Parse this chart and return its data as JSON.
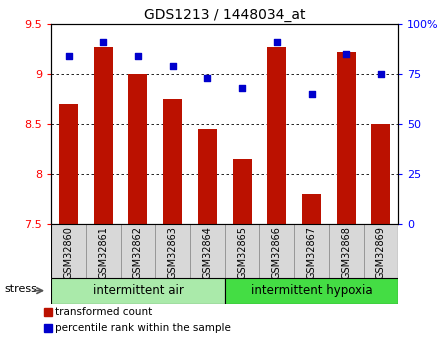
{
  "title": "GDS1213 / 1448034_at",
  "samples": [
    "GSM32860",
    "GSM32861",
    "GSM32862",
    "GSM32863",
    "GSM32864",
    "GSM32865",
    "GSM32866",
    "GSM32867",
    "GSM32868",
    "GSM32869"
  ],
  "transformed_counts": [
    8.7,
    9.27,
    9.0,
    8.75,
    8.45,
    8.15,
    9.27,
    7.8,
    9.22,
    8.5
  ],
  "percentile_ranks": [
    84,
    91,
    84,
    79,
    73,
    68,
    91,
    65,
    85,
    75
  ],
  "ylim_left": [
    7.5,
    9.5
  ],
  "ylim_right": [
    0,
    100
  ],
  "yticks_left": [
    7.5,
    8.0,
    8.5,
    9.0,
    9.5
  ],
  "ytick_labels_left": [
    "7.5",
    "8",
    "8.5",
    "9",
    "9.5"
  ],
  "yticks_right": [
    0,
    25,
    50,
    75,
    100
  ],
  "ytick_labels_right": [
    "0",
    "25",
    "50",
    "75",
    "100%"
  ],
  "groups": [
    {
      "label": "intermittent air",
      "start": 0,
      "end": 4,
      "color": "#AAEAAA"
    },
    {
      "label": "intermittent hypoxia",
      "start": 5,
      "end": 9,
      "color": "#44DD44"
    }
  ],
  "stress_label": "stress",
  "bar_color": "#BB1100",
  "dot_color": "#0000CC",
  "bar_width": 0.55,
  "bg_color": "#D8D8D8",
  "legend_items": [
    {
      "color": "#BB1100",
      "label": "transformed count"
    },
    {
      "color": "#0000CC",
      "label": "percentile rank within the sample"
    }
  ]
}
